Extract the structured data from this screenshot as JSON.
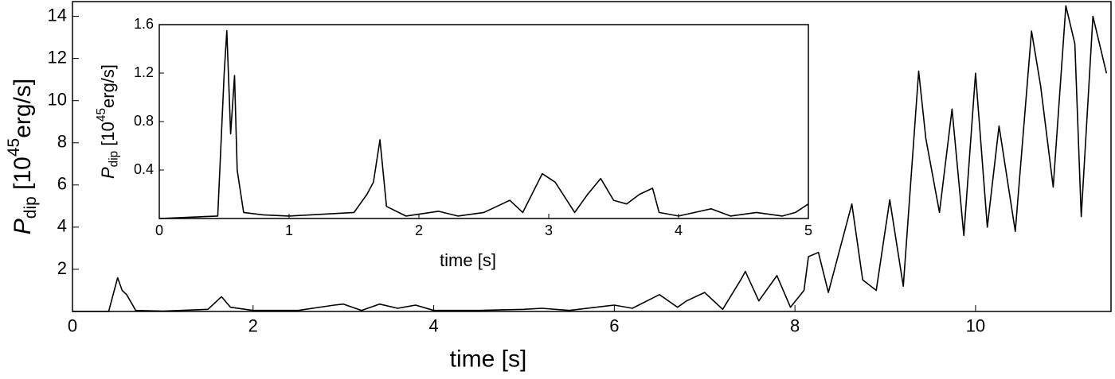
{
  "chart_data": [
    {
      "type": "line",
      "xlabel": "time [s]",
      "ylabel": {
        "symbol": "P",
        "subscript": "dip",
        "prefix": " [10",
        "superscript": "45",
        "unit": "erg/s]"
      },
      "x": [
        0,
        0.4,
        0.5,
        0.55,
        0.6,
        0.7,
        1.0,
        1.5,
        1.65,
        1.75,
        2.0,
        2.5,
        2.9,
        3.0,
        3.2,
        3.4,
        3.6,
        3.8,
        4.0,
        4.5,
        5.0,
        5.2,
        5.5,
        6.0,
        6.2,
        6.5,
        6.7,
        6.8,
        7.0,
        7.2,
        7.4,
        7.45,
        7.6,
        7.8,
        7.95,
        8.1,
        8.15,
        8.26,
        8.37,
        8.63,
        8.75,
        8.9,
        9.05,
        9.2,
        9.37,
        9.45,
        9.6,
        9.74,
        9.87,
        10.0,
        10.13,
        10.26,
        10.44,
        10.62,
        10.72,
        10.86,
        11.0,
        11.1,
        11.17,
        11.3,
        11.45
      ],
      "series": [
        {
          "color": "#000000",
          "values": [
            0,
            0,
            1.6,
            1.0,
            0.8,
            0.05,
            0.02,
            0.1,
            0.7,
            0.2,
            0.05,
            0.05,
            0.3,
            0.35,
            0.05,
            0.35,
            0.15,
            0.3,
            0.05,
            0.05,
            0.1,
            0.15,
            0.05,
            0.3,
            0.15,
            0.8,
            0.2,
            0.5,
            0.9,
            0.1,
            1.5,
            1.9,
            0.5,
            1.7,
            0.2,
            1.0,
            2.6,
            2.8,
            0.9,
            5.1,
            1.5,
            1.0,
            5.3,
            1.2,
            11.4,
            8.2,
            4.7,
            9.6,
            3.6,
            11.3,
            4.0,
            8.8,
            3.8,
            13.3,
            10.7,
            5.9,
            14.5,
            12.7,
            4.5,
            14.0,
            11.3
          ]
        }
      ],
      "xlim": [
        0,
        11.5
      ],
      "xticks": [
        0,
        2,
        4,
        6,
        8,
        10
      ],
      "ylim": [
        0,
        14.7
      ],
      "yticks": [
        2,
        4,
        6,
        8,
        10,
        12,
        14
      ]
    },
    {
      "type": "line",
      "xlabel": "time [s]",
      "ylabel": {
        "symbol": "P",
        "subscript": "dip",
        "prefix": " [10",
        "superscript": "45",
        "unit": "erg/s]"
      },
      "x": [
        0,
        0.45,
        0.5,
        0.52,
        0.55,
        0.58,
        0.6,
        0.65,
        0.8,
        1.0,
        1.5,
        1.6,
        1.65,
        1.7,
        1.75,
        1.9,
        2.15,
        2.3,
        2.5,
        2.6,
        2.7,
        2.8,
        2.95,
        3.05,
        3.2,
        3.3,
        3.4,
        3.5,
        3.6,
        3.7,
        3.8,
        3.85,
        4.0,
        4.25,
        4.4,
        4.6,
        4.8,
        4.9,
        5.0
      ],
      "series": [
        {
          "color": "#000000",
          "values": [
            0,
            0.02,
            1.2,
            1.55,
            0.7,
            1.18,
            0.4,
            0.05,
            0.03,
            0.02,
            0.05,
            0.2,
            0.3,
            0.65,
            0.1,
            0.02,
            0.06,
            0.02,
            0.05,
            0.1,
            0.15,
            0.05,
            0.37,
            0.3,
            0.05,
            0.2,
            0.33,
            0.15,
            0.12,
            0.2,
            0.25,
            0.05,
            0.02,
            0.08,
            0.02,
            0.05,
            0.02,
            0.05,
            0.12
          ]
        }
      ],
      "xlim": [
        0,
        5
      ],
      "xticks": [
        0,
        1,
        2,
        3,
        4,
        5
      ],
      "ylim": [
        0,
        1.6
      ],
      "yticks": [
        0.4,
        0.8,
        1.2,
        1.6
      ]
    }
  ]
}
